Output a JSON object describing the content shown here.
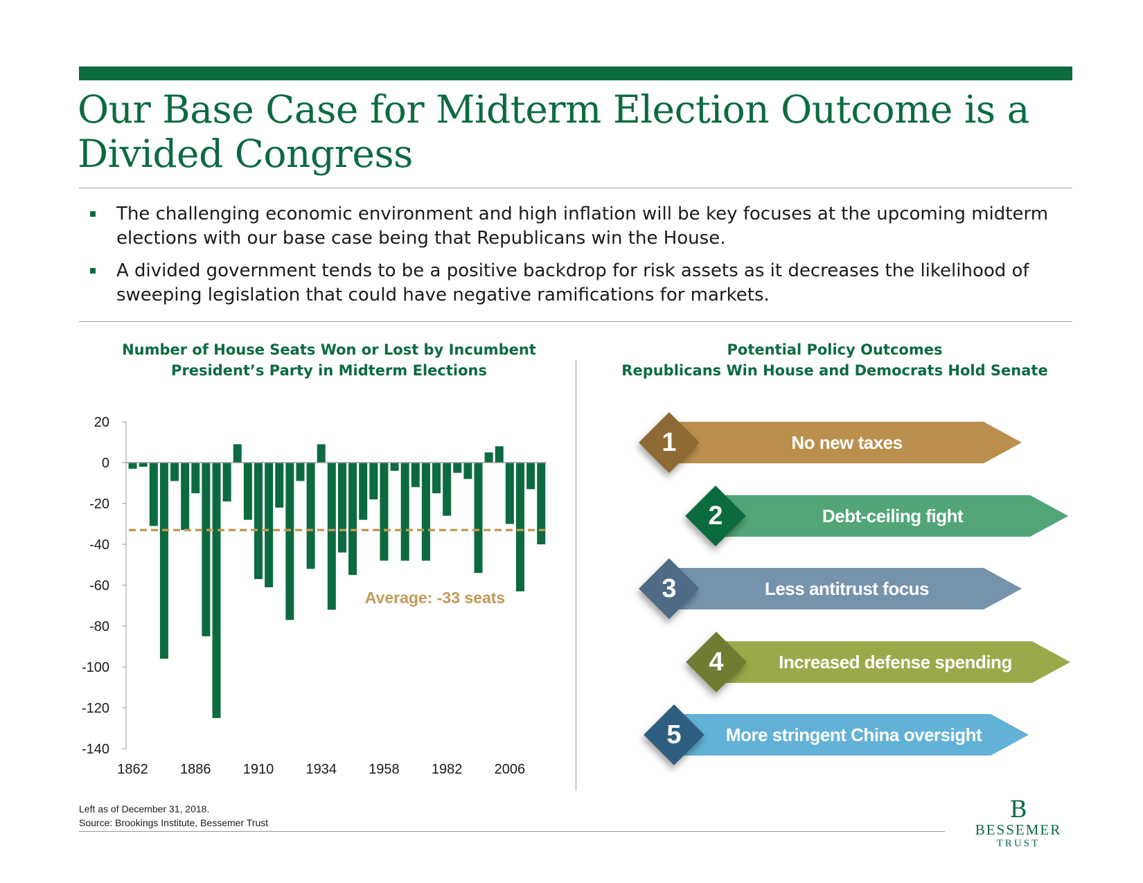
{
  "title": "Our Base Case for Midterm Election Outcome is a Divided Congress",
  "bullets": [
    "The challenging economic environment and high inflation will be key focuses at the upcoming midterm elections with our base case being that Republicans win the House.",
    "A divided government tends to be a positive backdrop for risk assets as it decreases the likelihood of sweeping legislation that could have negative ramifications for markets."
  ],
  "chart_data": {
    "type": "bar",
    "title": [
      "Number of House Seats Won or Lost by Incumbent",
      "President’s Party in Midterm Elections"
    ],
    "xlabel": "",
    "ylabel": "",
    "ylim": [
      -140,
      20
    ],
    "yticks": [
      20,
      0,
      -20,
      -40,
      -60,
      -80,
      -100,
      -120,
      -140
    ],
    "xticks": [
      "1862",
      "1886",
      "1910",
      "1934",
      "1958",
      "1982",
      "2006"
    ],
    "categories": [
      1862,
      1866,
      1870,
      1874,
      1878,
      1882,
      1886,
      1890,
      1894,
      1898,
      1902,
      1906,
      1910,
      1914,
      1918,
      1922,
      1926,
      1930,
      1934,
      1938,
      1942,
      1946,
      1950,
      1954,
      1958,
      1962,
      1966,
      1970,
      1974,
      1978,
      1982,
      1986,
      1990,
      1994,
      1998,
      2002,
      2006,
      2010,
      2014,
      2018
    ],
    "values": [
      -3,
      -2,
      -31,
      -96,
      -9,
      -33,
      -15,
      -85,
      -125,
      -19,
      9,
      -28,
      -57,
      -61,
      -22,
      -77,
      -9,
      -52,
      9,
      -72,
      -44,
      -55,
      -28,
      -18,
      -48,
      -4,
      -48,
      -12,
      -48,
      -15,
      -26,
      -5,
      -8,
      -54,
      5,
      8,
      -30,
      -63,
      -13,
      -40
    ],
    "bar_color": "#0b6b3f",
    "average": {
      "value": -33,
      "label": "Average: -33 seats",
      "color": "#c19a57"
    },
    "grid": false
  },
  "outcomes": {
    "title": [
      "Potential Policy Outcomes",
      "Republicans Win House and Democrats Hold Senate"
    ],
    "items": [
      {
        "number": "1",
        "label": "No new taxes",
        "color": "#bb904e",
        "dark": "#8e6a34"
      },
      {
        "number": "2",
        "label": "Debt-ceiling fight",
        "color": "#52a577",
        "dark": "#0b6b3f"
      },
      {
        "number": "3",
        "label": "Less antitrust focus",
        "color": "#7693ad",
        "dark": "#4f6a84"
      },
      {
        "number": "4",
        "label": "Increased defense spending",
        "color": "#99aa4a",
        "dark": "#6f7d33"
      },
      {
        "number": "5",
        "label": "More stringent China oversight",
        "color": "#62b1d6",
        "dark": "#2e5f80"
      }
    ]
  },
  "footnote": {
    "line1": "Left as of December 31, 2018.",
    "line2": "Source: Brookings Institute, Bessemer Trust"
  },
  "logo": {
    "mark": "B",
    "name": "BESSEMER",
    "sub": "TRUST"
  }
}
